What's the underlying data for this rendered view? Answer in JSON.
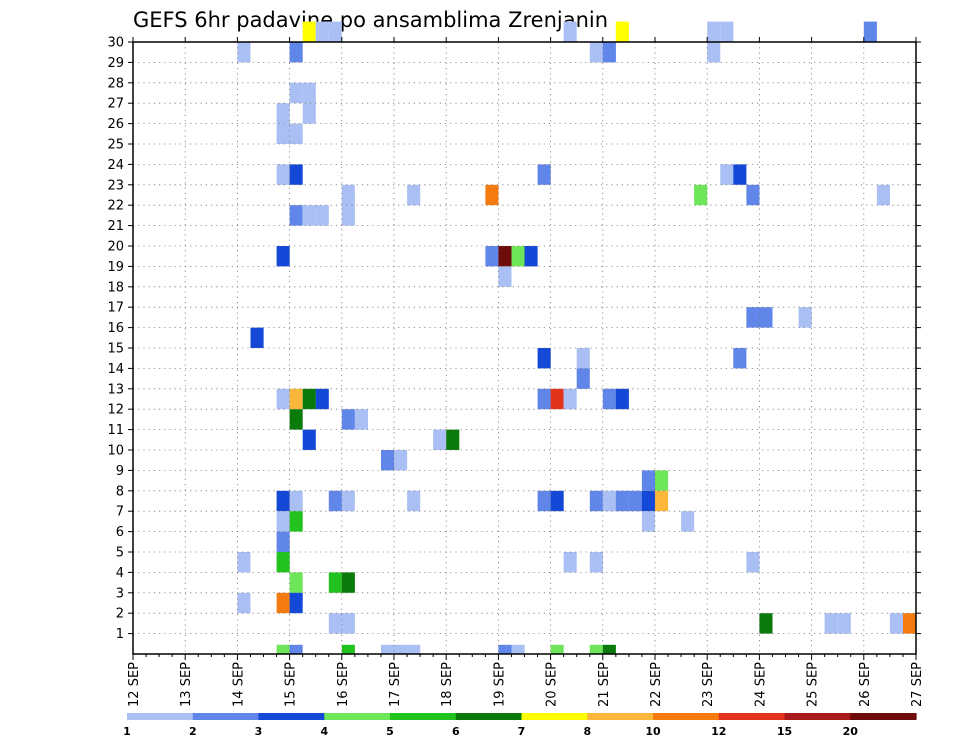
{
  "chart_data": {
    "type": "heatmap",
    "title": "GEFS 6hr padavine po ansamblima Zrenjanin",
    "y_ticks": [
      "1",
      "2",
      "3",
      "4",
      "5",
      "6",
      "7",
      "8",
      "9",
      "10",
      "11",
      "12",
      "13",
      "14",
      "15",
      "16",
      "17",
      "18",
      "19",
      "20",
      "21",
      "22",
      "23",
      "24",
      "25",
      "26",
      "27",
      "28",
      "29",
      "30"
    ],
    "x_ticks": [
      "12 SEP",
      "13 SEP",
      "14 SEP",
      "15 SEP",
      "16 SEP",
      "17 SEP",
      "18 SEP",
      "19 SEP",
      "20 SEP",
      "21 SEP",
      "22 SEP",
      "23 SEP",
      "24 SEP",
      "25 SEP",
      "26 SEP",
      "27 SEP"
    ],
    "grid": true,
    "legend_placement": "bottom",
    "legend": {
      "labels": [
        "1",
        "2",
        "3",
        "4",
        "5",
        "6",
        "7",
        "8",
        "10",
        "12",
        "15",
        "20"
      ],
      "colors": [
        "#aabff3",
        "#5f86e8",
        "#1448d6",
        "#6fe65a",
        "#23c31f",
        "#0a7a0b",
        "#fefe00",
        "#fcb73a",
        "#f57b0f",
        "#e3321a",
        "#a91b1b",
        "#6e0b0b"
      ]
    },
    "cells": [
      {
        "d": "15 SEP 06",
        "m": 30,
        "c": 7
      },
      {
        "d": "15 SEP 12",
        "m": 30,
        "c": 1
      },
      {
        "d": "15 SEP 18",
        "m": 30,
        "c": 1
      },
      {
        "d": "20 SEP 06",
        "m": 30,
        "c": 1
      },
      {
        "d": "21 SEP 06",
        "m": 30,
        "c": 7
      },
      {
        "d": "23 SEP 00",
        "m": 30,
        "c": 1
      },
      {
        "d": "23 SEP 06",
        "m": 30,
        "c": 1
      },
      {
        "d": "26 SEP 00",
        "m": 30,
        "c": 2
      },
      {
        "d": "14 SEP 00",
        "m": 29,
        "c": 1
      },
      {
        "d": "15 SEP 00",
        "m": 29,
        "c": 2
      },
      {
        "d": "20 SEP 18",
        "m": 29,
        "c": 1
      },
      {
        "d": "21 SEP 00",
        "m": 29,
        "c": 2
      },
      {
        "d": "23 SEP 00",
        "m": 29,
        "c": 1
      },
      {
        "d": "15 SEP 00",
        "m": 27,
        "c": 1
      },
      {
        "d": "15 SEP 06",
        "m": 27,
        "c": 1
      },
      {
        "d": "14 SEP 18",
        "m": 26,
        "c": 1
      },
      {
        "d": "15 SEP 06",
        "m": 26,
        "c": 1
      },
      {
        "d": "14 SEP 18",
        "m": 25,
        "c": 1
      },
      {
        "d": "15 SEP 00",
        "m": 25,
        "c": 1
      },
      {
        "d": "14 SEP 18",
        "m": 23,
        "c": 1
      },
      {
        "d": "15 SEP 00",
        "m": 23,
        "c": 3
      },
      {
        "d": "19 SEP 18",
        "m": 23,
        "c": 2
      },
      {
        "d": "23 SEP 06",
        "m": 23,
        "c": 1
      },
      {
        "d": "23 SEP 12",
        "m": 23,
        "c": 3
      },
      {
        "d": "16 SEP 00",
        "m": 22,
        "c": 1
      },
      {
        "d": "17 SEP 06",
        "m": 22,
        "c": 1
      },
      {
        "d": "18 SEP 18",
        "m": 22,
        "c": 9
      },
      {
        "d": "22 SEP 18",
        "m": 22,
        "c": 4
      },
      {
        "d": "23 SEP 18",
        "m": 22,
        "c": 2
      },
      {
        "d": "26 SEP 06",
        "m": 22,
        "c": 1
      },
      {
        "d": "15 SEP 00",
        "m": 21,
        "c": 2
      },
      {
        "d": "15 SEP 06",
        "m": 21,
        "c": 1
      },
      {
        "d": "15 SEP 12",
        "m": 21,
        "c": 1
      },
      {
        "d": "16 SEP 00",
        "m": 21,
        "c": 1
      },
      {
        "d": "18 SEP 18",
        "m": 19,
        "c": 2
      },
      {
        "d": "19 SEP 00",
        "m": 19,
        "c": 12
      },
      {
        "d": "19 SEP 06",
        "m": 19,
        "c": 4
      },
      {
        "d": "19 SEP 12",
        "m": 19,
        "c": 3
      },
      {
        "d": "14 SEP 18",
        "m": 19,
        "c": 3
      },
      {
        "d": "19 SEP 00",
        "m": 18,
        "c": 1
      },
      {
        "d": "23 SEP 18",
        "m": 16,
        "c": 2
      },
      {
        "d": "24 SEP 00",
        "m": 16,
        "c": 2
      },
      {
        "d": "24 SEP 18",
        "m": 16,
        "c": 1
      },
      {
        "d": "14 SEP 06",
        "m": 15,
        "c": 3
      },
      {
        "d": "19 SEP 18",
        "m": 14,
        "c": 3
      },
      {
        "d": "20 SEP 12",
        "m": 14,
        "c": 1
      },
      {
        "d": "23 SEP 12",
        "m": 14,
        "c": 2
      },
      {
        "d": "20 SEP 12",
        "m": 13,
        "c": 2
      },
      {
        "d": "14 SEP 18",
        "m": 12,
        "c": 1
      },
      {
        "d": "15 SEP 00",
        "m": 12,
        "c": 8
      },
      {
        "d": "15 SEP 06",
        "m": 12,
        "c": 6
      },
      {
        "d": "15 SEP 12",
        "m": 12,
        "c": 3
      },
      {
        "d": "19 SEP 18",
        "m": 12,
        "c": 2
      },
      {
        "d": "20 SEP 00",
        "m": 12,
        "c": 10
      },
      {
        "d": "20 SEP 06",
        "m": 12,
        "c": 1
      },
      {
        "d": "21 SEP 00",
        "m": 12,
        "c": 2
      },
      {
        "d": "21 SEP 06",
        "m": 12,
        "c": 3
      },
      {
        "d": "15 SEP 00",
        "m": 11,
        "c": 6
      },
      {
        "d": "16 SEP 00",
        "m": 11,
        "c": 2
      },
      {
        "d": "16 SEP 06",
        "m": 11,
        "c": 1
      },
      {
        "d": "15 SEP 06",
        "m": 10,
        "c": 3
      },
      {
        "d": "17 SEP 18",
        "m": 10,
        "c": 1
      },
      {
        "d": "18 SEP 00",
        "m": 10,
        "c": 6
      },
      {
        "d": "16 SEP 18",
        "m": 9,
        "c": 2
      },
      {
        "d": "17 SEP 00",
        "m": 9,
        "c": 1
      },
      {
        "d": "21 SEP 18",
        "m": 8,
        "c": 2
      },
      {
        "d": "22 SEP 00",
        "m": 8,
        "c": 4
      },
      {
        "d": "14 SEP 18",
        "m": 7,
        "c": 3
      },
      {
        "d": "15 SEP 00",
        "m": 7,
        "c": 1
      },
      {
        "d": "15 SEP 18",
        "m": 7,
        "c": 2
      },
      {
        "d": "16 SEP 00",
        "m": 7,
        "c": 1
      },
      {
        "d": "17 SEP 06",
        "m": 7,
        "c": 1
      },
      {
        "d": "19 SEP 18",
        "m": 7,
        "c": 2
      },
      {
        "d": "20 SEP 00",
        "m": 7,
        "c": 3
      },
      {
        "d": "20 SEP 18",
        "m": 7,
        "c": 2
      },
      {
        "d": "21 SEP 00",
        "m": 7,
        "c": 1
      },
      {
        "d": "21 SEP 06",
        "m": 7,
        "c": 2
      },
      {
        "d": "21 SEP 12",
        "m": 7,
        "c": 2
      },
      {
        "d": "21 SEP 18",
        "m": 7,
        "c": 3
      },
      {
        "d": "22 SEP 00",
        "m": 7,
        "c": 8
      },
      {
        "d": "14 SEP 18",
        "m": 6,
        "c": 1
      },
      {
        "d": "15 SEP 00",
        "m": 6,
        "c": 5
      },
      {
        "d": "21 SEP 18",
        "m": 6,
        "c": 1
      },
      {
        "d": "22 SEP 12",
        "m": 6,
        "c": 1
      },
      {
        "d": "14 SEP 18",
        "m": 5,
        "c": 2
      },
      {
        "d": "14 SEP 00",
        "m": 4,
        "c": 1
      },
      {
        "d": "14 SEP 18",
        "m": 4,
        "c": 5
      },
      {
        "d": "20 SEP 06",
        "m": 4,
        "c": 1
      },
      {
        "d": "20 SEP 18",
        "m": 4,
        "c": 1
      },
      {
        "d": "23 SEP 18",
        "m": 4,
        "c": 1
      },
      {
        "d": "15 SEP 00",
        "m": 3,
        "c": 4
      },
      {
        "d": "15 SEP 18",
        "m": 3,
        "c": 5
      },
      {
        "d": "16 SEP 00",
        "m": 3,
        "c": 6
      },
      {
        "d": "14 SEP 00",
        "m": 2,
        "c": 1
      },
      {
        "d": "14 SEP 18",
        "m": 2,
        "c": 9
      },
      {
        "d": "15 SEP 00",
        "m": 2,
        "c": 3
      },
      {
        "d": "15 SEP 18",
        "m": 1,
        "c": 1
      },
      {
        "d": "16 SEP 00",
        "m": 1,
        "c": 1
      },
      {
        "d": "24 SEP 00",
        "m": 1,
        "c": 6
      },
      {
        "d": "25 SEP 06",
        "m": 1,
        "c": 1
      },
      {
        "d": "25 SEP 12",
        "m": 1,
        "c": 1
      },
      {
        "d": "26 SEP 12",
        "m": 1,
        "c": 1
      },
      {
        "d": "26 SEP 18",
        "m": 1,
        "c": 9
      },
      {
        "d": "14 SEP 18",
        "m": 0,
        "c": 4
      },
      {
        "d": "15 SEP 00",
        "m": 0,
        "c": 2
      },
      {
        "d": "16 SEP 00",
        "m": 0,
        "c": 5
      },
      {
        "d": "16 SEP 18",
        "m": 0,
        "c": 1
      },
      {
        "d": "17 SEP 00",
        "m": 0,
        "c": 1
      },
      {
        "d": "17 SEP 06",
        "m": 0,
        "c": 1
      },
      {
        "d": "19 SEP 00",
        "m": 0,
        "c": 2
      },
      {
        "d": "19 SEP 06",
        "m": 0,
        "c": 1
      },
      {
        "d": "20 SEP 00",
        "m": 0,
        "c": 4
      },
      {
        "d": "20 SEP 18",
        "m": 0,
        "c": 4
      },
      {
        "d": "21 SEP 00",
        "m": 0,
        "c": 6
      }
    ]
  }
}
